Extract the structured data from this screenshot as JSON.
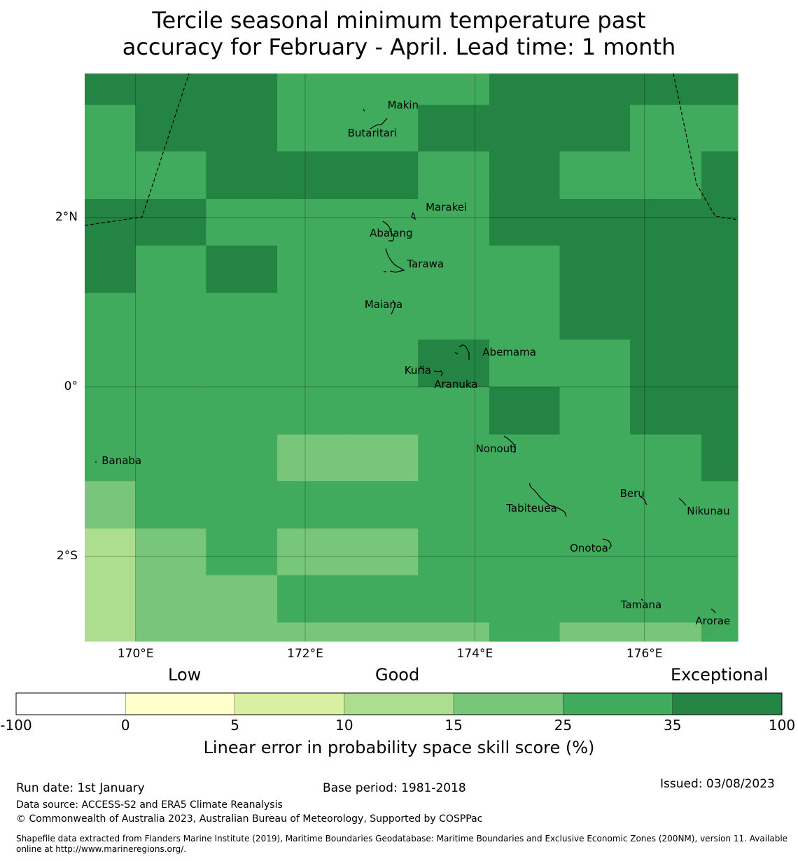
{
  "title": {
    "line1": "Tercile seasonal minimum temperature past",
    "line2": "accuracy for February - April. Lead time: 1 month"
  },
  "map": {
    "lon_range": [
      169.4,
      177.1
    ],
    "lat_range": [
      -3.0,
      3.7
    ],
    "grid_lon_edges": [
      169.4,
      170.0,
      170.83,
      171.67,
      172.5,
      173.33,
      174.17,
      175.0,
      175.83,
      176.67,
      177.1
    ],
    "grid_lat_edges": [
      3.7,
      3.33,
      2.78,
      2.22,
      1.67,
      1.11,
      0.56,
      0.0,
      -0.56,
      -1.11,
      -1.67,
      -2.22,
      -2.78,
      -3.0
    ],
    "cell_classes": [
      [
        6,
        6,
        6,
        5,
        5,
        5,
        6,
        6,
        6,
        6
      ],
      [
        5,
        6,
        6,
        5,
        5,
        6,
        6,
        6,
        5,
        5
      ],
      [
        5,
        5,
        6,
        6,
        6,
        5,
        6,
        5,
        5,
        6
      ],
      [
        6,
        6,
        5,
        5,
        5,
        5,
        6,
        6,
        6,
        6
      ],
      [
        6,
        5,
        6,
        5,
        5,
        5,
        5,
        6,
        6,
        6
      ],
      [
        5,
        5,
        5,
        5,
        5,
        5,
        5,
        6,
        6,
        6
      ],
      [
        5,
        5,
        5,
        5,
        5,
        6,
        5,
        5,
        6,
        6
      ],
      [
        5,
        5,
        5,
        5,
        5,
        5,
        6,
        5,
        6,
        6
      ],
      [
        5,
        5,
        5,
        4,
        4,
        5,
        5,
        5,
        5,
        6
      ],
      [
        4,
        5,
        5,
        5,
        5,
        5,
        5,
        5,
        5,
        5
      ],
      [
        3,
        4,
        5,
        4,
        4,
        5,
        5,
        5,
        5,
        5
      ],
      [
        3,
        4,
        4,
        5,
        5,
        5,
        5,
        5,
        5,
        5
      ],
      [
        3,
        4,
        4,
        4,
        4,
        4,
        5,
        4,
        4,
        5
      ]
    ],
    "y_ticks": [
      {
        "label": "2°N",
        "lat": 2.0
      },
      {
        "label": "0°",
        "lat": 0.0
      },
      {
        "label": "2°S",
        "lat": -2.0
      }
    ],
    "x_ticks": [
      {
        "label": "170°E",
        "lon": 170.0
      },
      {
        "label": "172°E",
        "lon": 172.0
      },
      {
        "label": "174°E",
        "lon": 174.0
      },
      {
        "label": "176°E",
        "lon": 176.0
      }
    ],
    "places": [
      {
        "name": "Makin",
        "lon": 172.97,
        "lat": 3.33
      },
      {
        "name": "Butaritari",
        "lon": 172.5,
        "lat": 3.0
      },
      {
        "name": "Marakei",
        "lon": 173.42,
        "lat": 2.12
      },
      {
        "name": "Abaiang",
        "lon": 172.76,
        "lat": 1.82
      },
      {
        "name": "Tarawa",
        "lon": 173.2,
        "lat": 1.45
      },
      {
        "name": "Maiana",
        "lon": 172.7,
        "lat": 0.97
      },
      {
        "name": "Abemama",
        "lon": 174.09,
        "lat": 0.41
      },
      {
        "name": "Kuria",
        "lon": 173.17,
        "lat": 0.2
      },
      {
        "name": "Aranuka",
        "lon": 173.52,
        "lat": 0.03
      },
      {
        "name": "Nonouti",
        "lon": 174.01,
        "lat": -0.73
      },
      {
        "name": "Banaba",
        "lon": 169.6,
        "lat": -0.87
      },
      {
        "name": "Tabiteuea",
        "lon": 174.37,
        "lat": -1.43
      },
      {
        "name": "Beru",
        "lon": 175.71,
        "lat": -1.26
      },
      {
        "name": "Nikunau",
        "lon": 176.5,
        "lat": -1.46
      },
      {
        "name": "Onotoa",
        "lon": 175.12,
        "lat": -1.9
      },
      {
        "name": "Tamana",
        "lon": 175.72,
        "lat": -2.57
      },
      {
        "name": "Arorae",
        "lon": 176.6,
        "lat": -2.76
      }
    ]
  },
  "colorbar": {
    "categories": [
      "Low",
      "Good",
      "Exceptional"
    ],
    "ticks": [
      "-100",
      "0",
      "5",
      "10",
      "15",
      "25",
      "35",
      "100"
    ],
    "colors": [
      "#ffffff",
      "#ffffcc",
      "#d9f0a3",
      "#addd8e",
      "#78c679",
      "#41ab5d",
      "#238443"
    ],
    "label": "Linear error in probability space skill score (%)"
  },
  "footer": {
    "run_date": "Run date: 1st January",
    "base_period": "Base period: 1981-2018",
    "issued": "Issued: 03/08/2023",
    "data_source": "Data source: ACCESS-S2 and ERA5 Climate Reanalysis",
    "copyright": "© Commonwealth of Australia 2023, Australian Bureau of Meteorology, Supported by COSPPac",
    "shapefile": "Shapefile data extracted from Flanders Marine Institute (2019), Maritime Boundaries Geodatabase: Maritime Boundaries and Exclusive Economic Zones (200NM), version 11. Available online at http://www.marineregions.org/."
  }
}
